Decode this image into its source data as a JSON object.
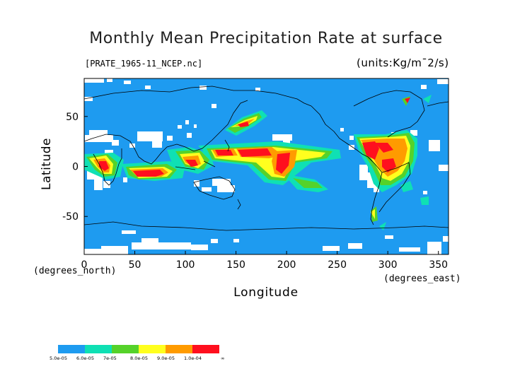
{
  "title": "Monthly Mean Precipitation Rate at surface",
  "file_label": "[PRATE_1965-11_NCEP.nc]",
  "units_label": "(units:Kg/m¯2/s)",
  "axes": {
    "xlabel": "Longitude",
    "ylabel": "Latitude",
    "x_unit": "(degrees_east)",
    "y_unit": "(degrees_north)",
    "x_ticks": [
      "0",
      "50",
      "100",
      "150",
      "200",
      "250",
      "300",
      "350"
    ],
    "y_ticks": [
      "50",
      "0",
      "-50"
    ]
  },
  "map": {
    "lon_range": [
      0,
      360
    ],
    "lat_range": [
      -88,
      88
    ],
    "missing_color": "#ffffff",
    "coastlines": true
  },
  "legend": {
    "colors": [
      "#1e9bf0",
      "#0fe0b4",
      "#55d22a",
      "#ffff1e",
      "#ff9b00",
      "#ff0f1e"
    ],
    "labels": [
      "5.0e-05",
      "6.0e-05",
      "7e-05",
      "8.0e-05",
      "9.0e-05",
      "1.0e-04",
      "∞"
    ]
  }
}
